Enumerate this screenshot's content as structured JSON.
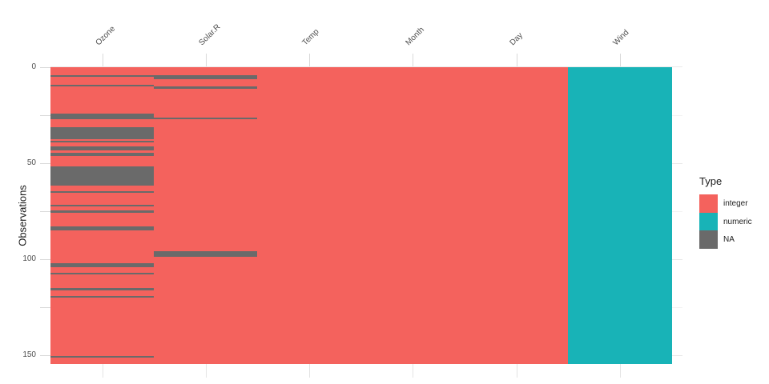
{
  "chart_data": {
    "type": "heatmap",
    "ylabel": "Observations",
    "n_rows": 153,
    "columns": [
      {
        "label": "Ozone",
        "type": "integer",
        "na_rows": [
          [
            5,
            5
          ],
          [
            10,
            10
          ],
          [
            25,
            27
          ],
          [
            32,
            37
          ],
          [
            39,
            39
          ],
          [
            42,
            43
          ],
          [
            45,
            46
          ],
          [
            52,
            61
          ],
          [
            65,
            65
          ],
          [
            72,
            72
          ],
          [
            75,
            75
          ],
          [
            83,
            84
          ],
          [
            102,
            103
          ],
          [
            107,
            107
          ],
          [
            115,
            115
          ],
          [
            119,
            119
          ],
          [
            150,
            150
          ]
        ]
      },
      {
        "label": "Solar.R",
        "type": "integer",
        "na_rows": [
          [
            5,
            6
          ],
          [
            11,
            11
          ],
          [
            27,
            27
          ],
          [
            96,
            98
          ]
        ]
      },
      {
        "label": "Temp",
        "type": "integer",
        "na_rows": []
      },
      {
        "label": "Month",
        "type": "integer",
        "na_rows": []
      },
      {
        "label": "Day",
        "type": "integer",
        "na_rows": []
      },
      {
        "label": "Wind",
        "type": "numeric",
        "na_rows": []
      }
    ],
    "y_axis": {
      "major_ticks": [
        0,
        50,
        100,
        150
      ],
      "minor_ticks": [
        25,
        75,
        125
      ],
      "range": [
        0,
        153
      ]
    },
    "legend": {
      "title": "Type",
      "items": [
        {
          "label": "integer",
          "color": "#F4625D"
        },
        {
          "label": "numeric",
          "color": "#18B3B7"
        },
        {
          "label": "NA",
          "color": "#6A6A6A"
        }
      ]
    },
    "colors": {
      "integer": "#F4625D",
      "numeric": "#18B3B7",
      "NA": "#6A6A6A"
    }
  }
}
